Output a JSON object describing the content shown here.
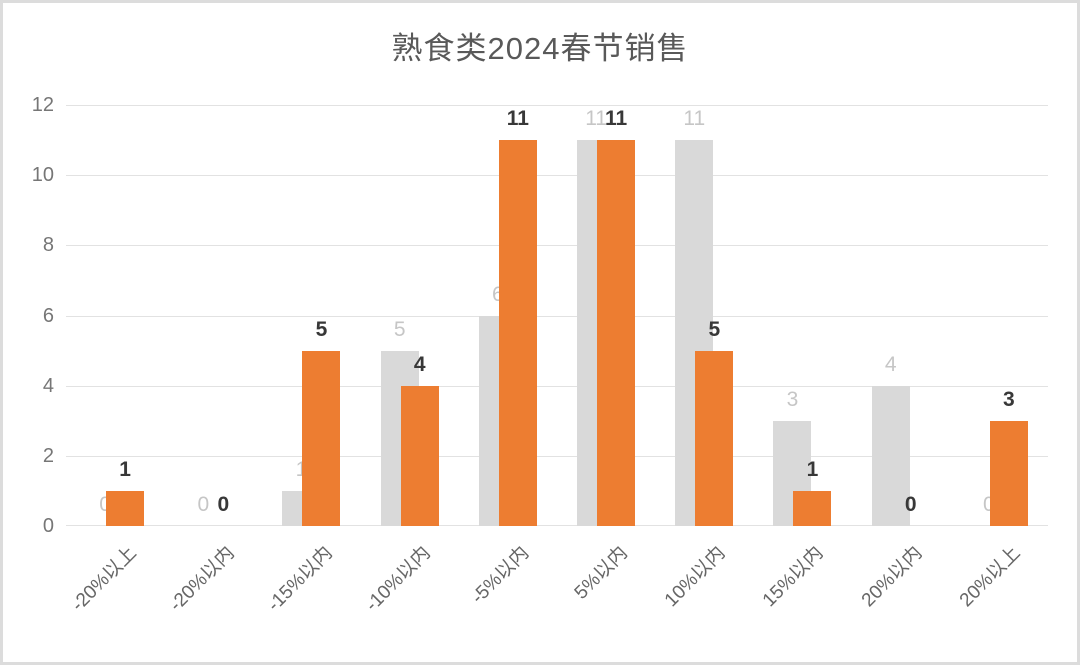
{
  "title": "熟食类2024春节销售",
  "chart_data": {
    "type": "bar",
    "title": "熟食类2024春节销售",
    "categories": [
      "-20%以上",
      "-20%以内",
      "-15%以内",
      "-10%以内",
      "-5%以内",
      "5%以内",
      "10%以内",
      "15%以内",
      "20%以内",
      "20%以上"
    ],
    "series": [
      {
        "name": "series1",
        "color": "#d9d9d9",
        "label_color": "#c6c6c6",
        "values": [
          0,
          0,
          1,
          5,
          6,
          11,
          11,
          3,
          4,
          0
        ]
      },
      {
        "name": "series2",
        "color": "#ed7d31",
        "label_color": "#383838",
        "values": [
          1,
          0,
          5,
          4,
          11,
          11,
          5,
          1,
          0,
          3
        ]
      }
    ],
    "ylim": [
      0,
      12
    ],
    "yticks": [
      0,
      2,
      4,
      6,
      8,
      10,
      12
    ],
    "xlabel": "",
    "ylabel": "",
    "grid": true,
    "legend_position": "none",
    "data_labels": true,
    "x_tick_rotation_deg": 45
  },
  "colors": {
    "grid": "#e2e2e2",
    "y_axis_text": "#767676",
    "x_axis_text": "#666666",
    "title_text": "#595959",
    "frame_border": "#dcdcdc",
    "background": "#ffffff"
  }
}
